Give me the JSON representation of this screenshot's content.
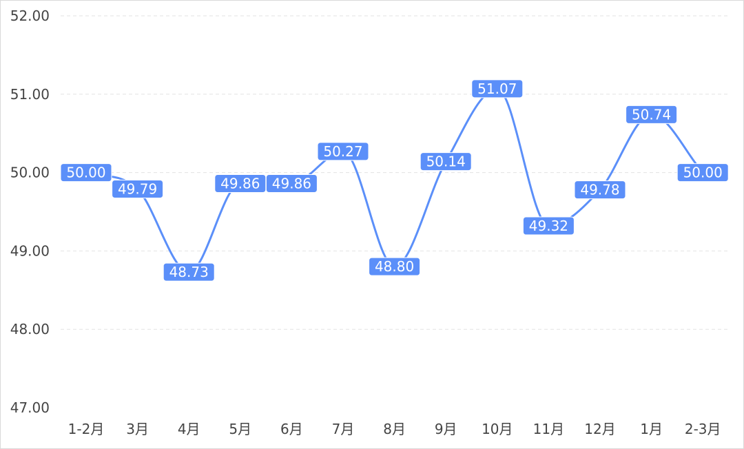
{
  "chart_data": {
    "type": "line",
    "categories": [
      "1-2月",
      "3月",
      "4月",
      "5月",
      "6月",
      "7月",
      "8月",
      "9月",
      "10月",
      "11月",
      "12月",
      "1月",
      "2-3月"
    ],
    "values": [
      50.0,
      49.79,
      48.73,
      49.86,
      49.86,
      50.27,
      48.8,
      50.14,
      51.07,
      49.32,
      49.78,
      50.74,
      50.0
    ],
    "data_labels": [
      "50.00",
      "49.79",
      "48.73",
      "49.86",
      "49.86",
      "50.27",
      "48.80",
      "50.14",
      "51.07",
      "49.32",
      "49.78",
      "50.74",
      "50.00"
    ],
    "ylim": [
      47,
      52
    ],
    "yticks": [
      "47.00",
      "48.00",
      "49.00",
      "50.00",
      "51.00",
      "52.00"
    ],
    "grid": "horizontal-dashed",
    "smooth": true,
    "colors": {
      "line": "#5b8ff9",
      "label_bg": "#5b8ff9",
      "label_text": "#ffffff",
      "grid": "#e3e3e3",
      "axis_text": "#444444",
      "border": "#d9d9d9"
    }
  }
}
